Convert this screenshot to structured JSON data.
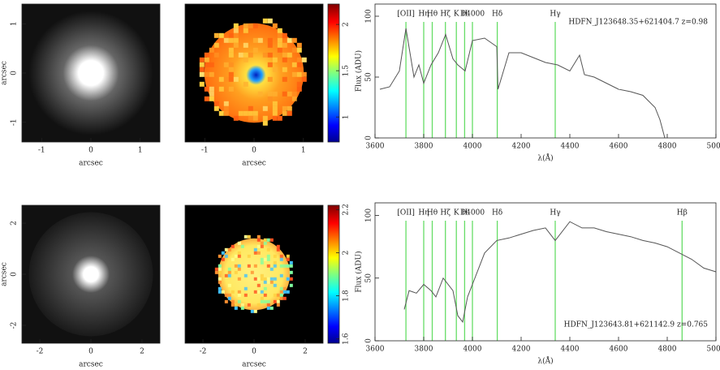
{
  "rows": [
    {
      "image": {
        "xlabel": "arcsec",
        "ylabel": "arcsec",
        "xlim": [
          -1.4,
          1.4
        ],
        "ylim": [
          -1.4,
          1.4
        ],
        "xticks": [
          -1,
          0,
          1
        ],
        "yticks": [
          -1,
          0,
          1
        ]
      },
      "map": {
        "xlabel": "arcsec",
        "xlim": [
          -1.4,
          1.4
        ],
        "xticks": [
          -1,
          0,
          1
        ],
        "colorbar": {
          "lim": [
            0.73,
            2.22
          ],
          "ticks": [
            1,
            1.5,
            2
          ]
        }
      },
      "spectrum": {
        "type": "line",
        "xlabel": "λ(Å)",
        "ylabel": "Flux (ADU)",
        "annotation": "HDFN_J123648.35+621404.7  z=0.98",
        "xlim": [
          3600,
          5000
        ],
        "ylim": [
          0,
          110
        ],
        "xticks": [
          3600,
          3800,
          4000,
          4200,
          4400,
          4600,
          4800,
          5000
        ],
        "yticks": [
          0,
          50,
          100
        ],
        "color": "#555555",
        "line_color": "#66dd66",
        "lines": [
          {
            "label": "[OII]",
            "x": 3727
          },
          {
            "label": "Hη",
            "x": 3800
          },
          {
            "label": "Hθ",
            "x": 3835
          },
          {
            "label": "Hζ",
            "x": 3889
          },
          {
            "label": "K",
            "x": 3934
          },
          {
            "label": "H",
            "x": 3968
          },
          {
            "label": "D4000",
            "x": 4000
          },
          {
            "label": "Hδ",
            "x": 4102
          },
          {
            "label": "Hγ",
            "x": 4340
          }
        ],
        "x": [
          3620,
          3660,
          3700,
          3727,
          3760,
          3780,
          3800,
          3830,
          3860,
          3890,
          3920,
          3940,
          3970,
          4000,
          4050,
          4100,
          4105,
          4150,
          4200,
          4250,
          4300,
          4350,
          4400,
          4440,
          4460,
          4500,
          4550,
          4600,
          4650,
          4700,
          4750,
          4770,
          4790
        ],
        "values": [
          40,
          42,
          55,
          90,
          50,
          60,
          45,
          60,
          70,
          85,
          65,
          60,
          55,
          80,
          82,
          75,
          40,
          70,
          70,
          66,
          62,
          60,
          55,
          68,
          52,
          50,
          45,
          40,
          38,
          35,
          25,
          15,
          0
        ]
      }
    },
    {
      "image": {
        "xlabel": "arcsec",
        "ylabel": "arcsec",
        "xlim": [
          -2.7,
          2.7
        ],
        "ylim": [
          -2.7,
          2.7
        ],
        "xticks": [
          -2,
          0,
          2
        ],
        "yticks": [
          -2,
          0,
          2
        ]
      },
      "map": {
        "xlabel": "arcsec",
        "xlim": [
          -2.7,
          2.7
        ],
        "xticks": [
          -2,
          0,
          2
        ],
        "colorbar": {
          "lim": [
            1.58,
            2.22
          ],
          "ticks": [
            1.6,
            1.8,
            2,
            2.2
          ]
        }
      },
      "spectrum": {
        "type": "line",
        "xlabel": "λ(Å)",
        "ylabel": "Flux (ADU)",
        "annotation": "HDFN_J123643.81+621142.9  z=0.765",
        "xlim": [
          3600,
          5000
        ],
        "ylim": [
          0,
          110
        ],
        "xticks": [
          3600,
          3800,
          4000,
          4200,
          4400,
          4600,
          4800,
          5000
        ],
        "yticks": [
          0,
          50,
          100
        ],
        "color": "#555555",
        "line_color": "#66dd66",
        "lines": [
          {
            "label": "[OII]",
            "x": 3727
          },
          {
            "label": "Hη",
            "x": 3800
          },
          {
            "label": "Hθ",
            "x": 3835
          },
          {
            "label": "Hζ",
            "x": 3889
          },
          {
            "label": "K",
            "x": 3934
          },
          {
            "label": "H",
            "x": 3968
          },
          {
            "label": "D4000",
            "x": 4000
          },
          {
            "label": "Hδ",
            "x": 4102
          },
          {
            "label": "Hγ",
            "x": 4340
          },
          {
            "label": "Hβ",
            "x": 4861
          }
        ],
        "x": [
          3720,
          3740,
          3770,
          3800,
          3830,
          3850,
          3880,
          3920,
          3940,
          3960,
          3980,
          4000,
          4050,
          4100,
          4150,
          4200,
          4250,
          4300,
          4340,
          4400,
          4450,
          4500,
          4550,
          4600,
          4650,
          4700,
          4750,
          4800,
          4850,
          4900,
          4950,
          5000
        ],
        "values": [
          25,
          40,
          38,
          45,
          40,
          35,
          50,
          40,
          20,
          15,
          35,
          45,
          70,
          80,
          82,
          85,
          88,
          90,
          80,
          95,
          90,
          90,
          87,
          85,
          83,
          80,
          78,
          75,
          70,
          65,
          58,
          55
        ]
      }
    }
  ]
}
